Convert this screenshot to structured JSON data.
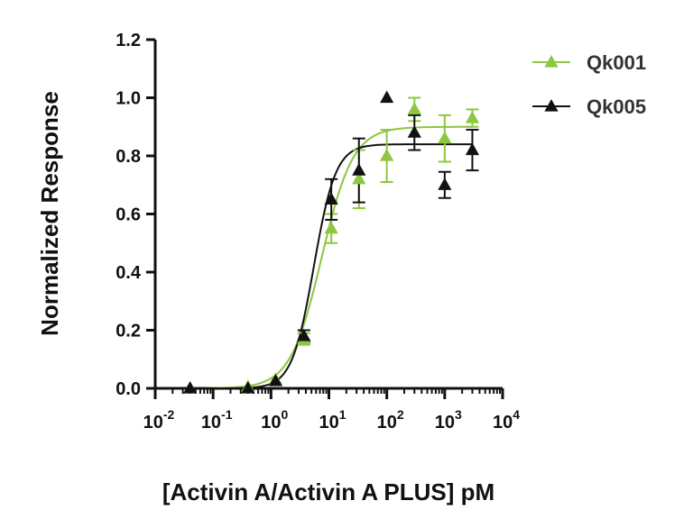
{
  "chart_data": {
    "type": "scatter",
    "title": "",
    "xlabel": "[Activin A/Activin A PLUS] pM",
    "ylabel": "Normalized Response",
    "x_scale": "log",
    "xlim": [
      0.01,
      10000
    ],
    "ylim": [
      0.0,
      1.2
    ],
    "x_ticks": [
      0.01,
      0.1,
      1,
      10,
      100,
      1000,
      10000
    ],
    "x_tick_labels": [
      {
        "base": "10",
        "exp": "-2"
      },
      {
        "base": "10",
        "exp": "-1"
      },
      {
        "base": "10",
        "exp": "0"
      },
      {
        "base": "10",
        "exp": "1"
      },
      {
        "base": "10",
        "exp": "2"
      },
      {
        "base": "10",
        "exp": "3"
      },
      {
        "base": "10",
        "exp": "4"
      }
    ],
    "y_ticks": [
      0.0,
      0.2,
      0.4,
      0.6,
      0.8,
      1.0,
      1.2
    ],
    "y_tick_labels": [
      "0.0",
      "0.2",
      "0.4",
      "0.6",
      "0.8",
      "1.0",
      "1.2"
    ],
    "grid": false,
    "legend_position": "top-right",
    "series": [
      {
        "name": "Qk001",
        "color": "#8dc63f",
        "marker": "triangle",
        "fit": {
          "model": "4PL",
          "bottom": 0.0,
          "top": 0.9,
          "ec50": 7.5,
          "hill": 1.6
        },
        "points": [
          {
            "x": 0.04,
            "y": 0.0,
            "err": 0.0
          },
          {
            "x": 0.4,
            "y": 0.005,
            "err": 0.0
          },
          {
            "x": 1.2,
            "y": 0.03,
            "err": 0.0
          },
          {
            "x": 3.7,
            "y": 0.17,
            "err": 0.02
          },
          {
            "x": 11,
            "y": 0.55,
            "err": 0.05
          },
          {
            "x": 33,
            "y": 0.72,
            "err": 0.1
          },
          {
            "x": 100,
            "y": 0.8,
            "err": 0.09
          },
          {
            "x": 300,
            "y": 0.96,
            "err": 0.04
          },
          {
            "x": 1000,
            "y": 0.86,
            "err": 0.08
          },
          {
            "x": 3000,
            "y": 0.93,
            "err": 0.03
          }
        ]
      },
      {
        "name": "Qk005",
        "color": "#111111",
        "marker": "triangle",
        "fit": {
          "model": "4PL",
          "bottom": 0.0,
          "top": 0.84,
          "ec50": 5.5,
          "hill": 2.3
        },
        "points": [
          {
            "x": 0.04,
            "y": 0.0,
            "err": 0.0
          },
          {
            "x": 0.4,
            "y": 0.0,
            "err": 0.0
          },
          {
            "x": 1.2,
            "y": 0.025,
            "err": 0.0
          },
          {
            "x": 3.7,
            "y": 0.18,
            "err": 0.02
          },
          {
            "x": 11,
            "y": 0.65,
            "err": 0.07
          },
          {
            "x": 33,
            "y": 0.75,
            "err": 0.11
          },
          {
            "x": 100,
            "y": 1.0,
            "err": 0.0
          },
          {
            "x": 300,
            "y": 0.88,
            "err": 0.06
          },
          {
            "x": 1000,
            "y": 0.7,
            "err": 0.045
          },
          {
            "x": 3000,
            "y": 0.82,
            "err": 0.07
          }
        ]
      }
    ]
  }
}
